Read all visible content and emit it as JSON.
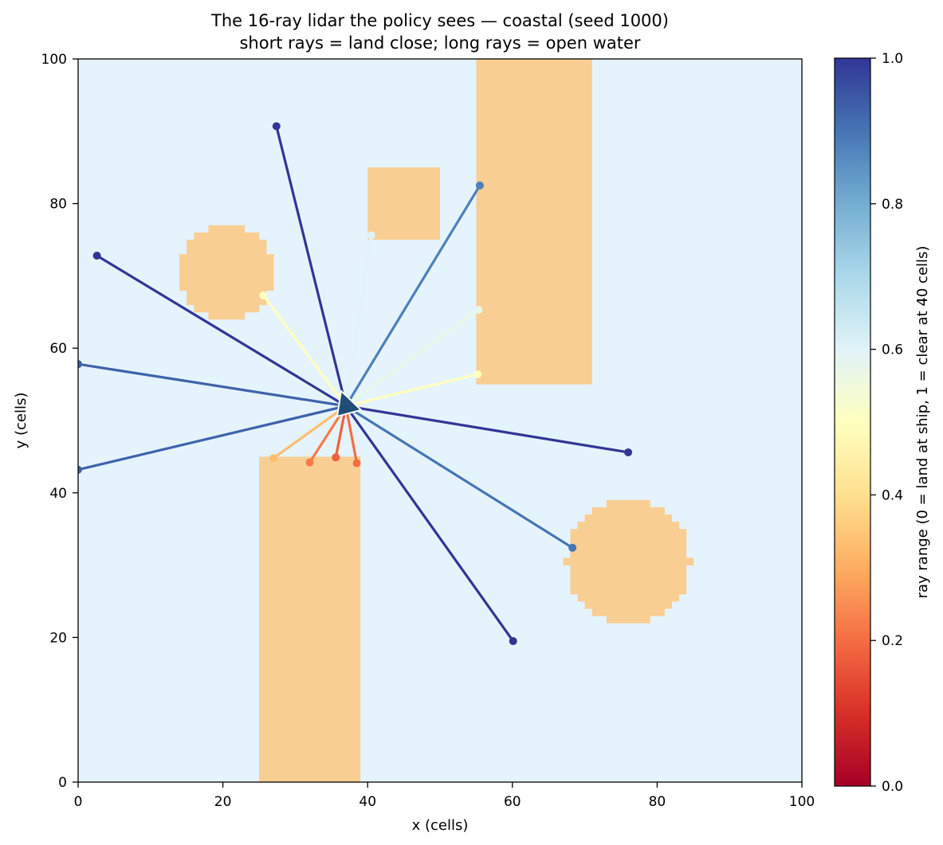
{
  "chart_data": {
    "type": "scatter",
    "title": "The 16-ray lidar the policy sees — coastal (seed 1000)",
    "subtitle": "short rays = land close; long rays = open water",
    "xlabel": "x (cells)",
    "ylabel": "y (cells)",
    "xlim": [
      0,
      100
    ],
    "ylim": [
      0,
      100
    ],
    "x_ticks": [
      "0",
      "20",
      "40",
      "60",
      "80",
      "100"
    ],
    "y_ticks": [
      "0",
      "20",
      "40",
      "60",
      "80",
      "100"
    ],
    "grid": false,
    "colorbar": {
      "label": "ray range  (0 = land at ship, 1 = clear at 40 cells)",
      "range": [
        0,
        1
      ],
      "ticks": [
        "0.0",
        "0.2",
        "0.4",
        "0.6",
        "0.8",
        "1.0"
      ],
      "colormap": "RdYlBu"
    },
    "background_colors": {
      "water": "#e5f3fc",
      "land": "#f9ce92"
    },
    "ship": {
      "x": 37,
      "y": 52
    },
    "land": {
      "rectangles": [
        {
          "x0": 55,
          "x1": 71,
          "y0": 55,
          "y1": 100
        },
        {
          "x0": 40,
          "x1": 50,
          "y0": 75,
          "y1": 85
        },
        {
          "x0": 25,
          "x1": 39,
          "y0": 0,
          "y1": 45
        }
      ],
      "circles": [
        {
          "cx": 20.5,
          "cy": 70.5,
          "r": 6.5
        },
        {
          "cx": 76,
          "cy": 30.5,
          "r": 8.5
        }
      ]
    },
    "rays": [
      {
        "x": 76.0,
        "y": 45.6,
        "range": 1.0
      },
      {
        "x": 68.3,
        "y": 32.4,
        "range": 0.9
      },
      {
        "x": 60.1,
        "y": 19.5,
        "range": 1.0
      },
      {
        "x": 38.5,
        "y": 44.1,
        "range": 0.2
      },
      {
        "x": 35.6,
        "y": 44.9,
        "range": 0.18
      },
      {
        "x": 32.0,
        "y": 44.2,
        "range": 0.22
      },
      {
        "x": 27.0,
        "y": 44.8,
        "range": 0.33
      },
      {
        "x": 0.0,
        "y": 43.2,
        "range": 0.93
      },
      {
        "x": 0.0,
        "y": 57.8,
        "range": 0.93
      },
      {
        "x": 2.6,
        "y": 72.8,
        "range": 1.0
      },
      {
        "x": 25.6,
        "y": 67.3,
        "range": 0.5
      },
      {
        "x": 27.4,
        "y": 90.7,
        "range": 1.0
      },
      {
        "x": 40.5,
        "y": 75.6,
        "range": 0.6
      },
      {
        "x": 55.5,
        "y": 82.5,
        "range": 0.88
      },
      {
        "x": 55.3,
        "y": 65.3,
        "range": 0.57
      },
      {
        "x": 55.2,
        "y": 56.4,
        "range": 0.5
      }
    ]
  }
}
